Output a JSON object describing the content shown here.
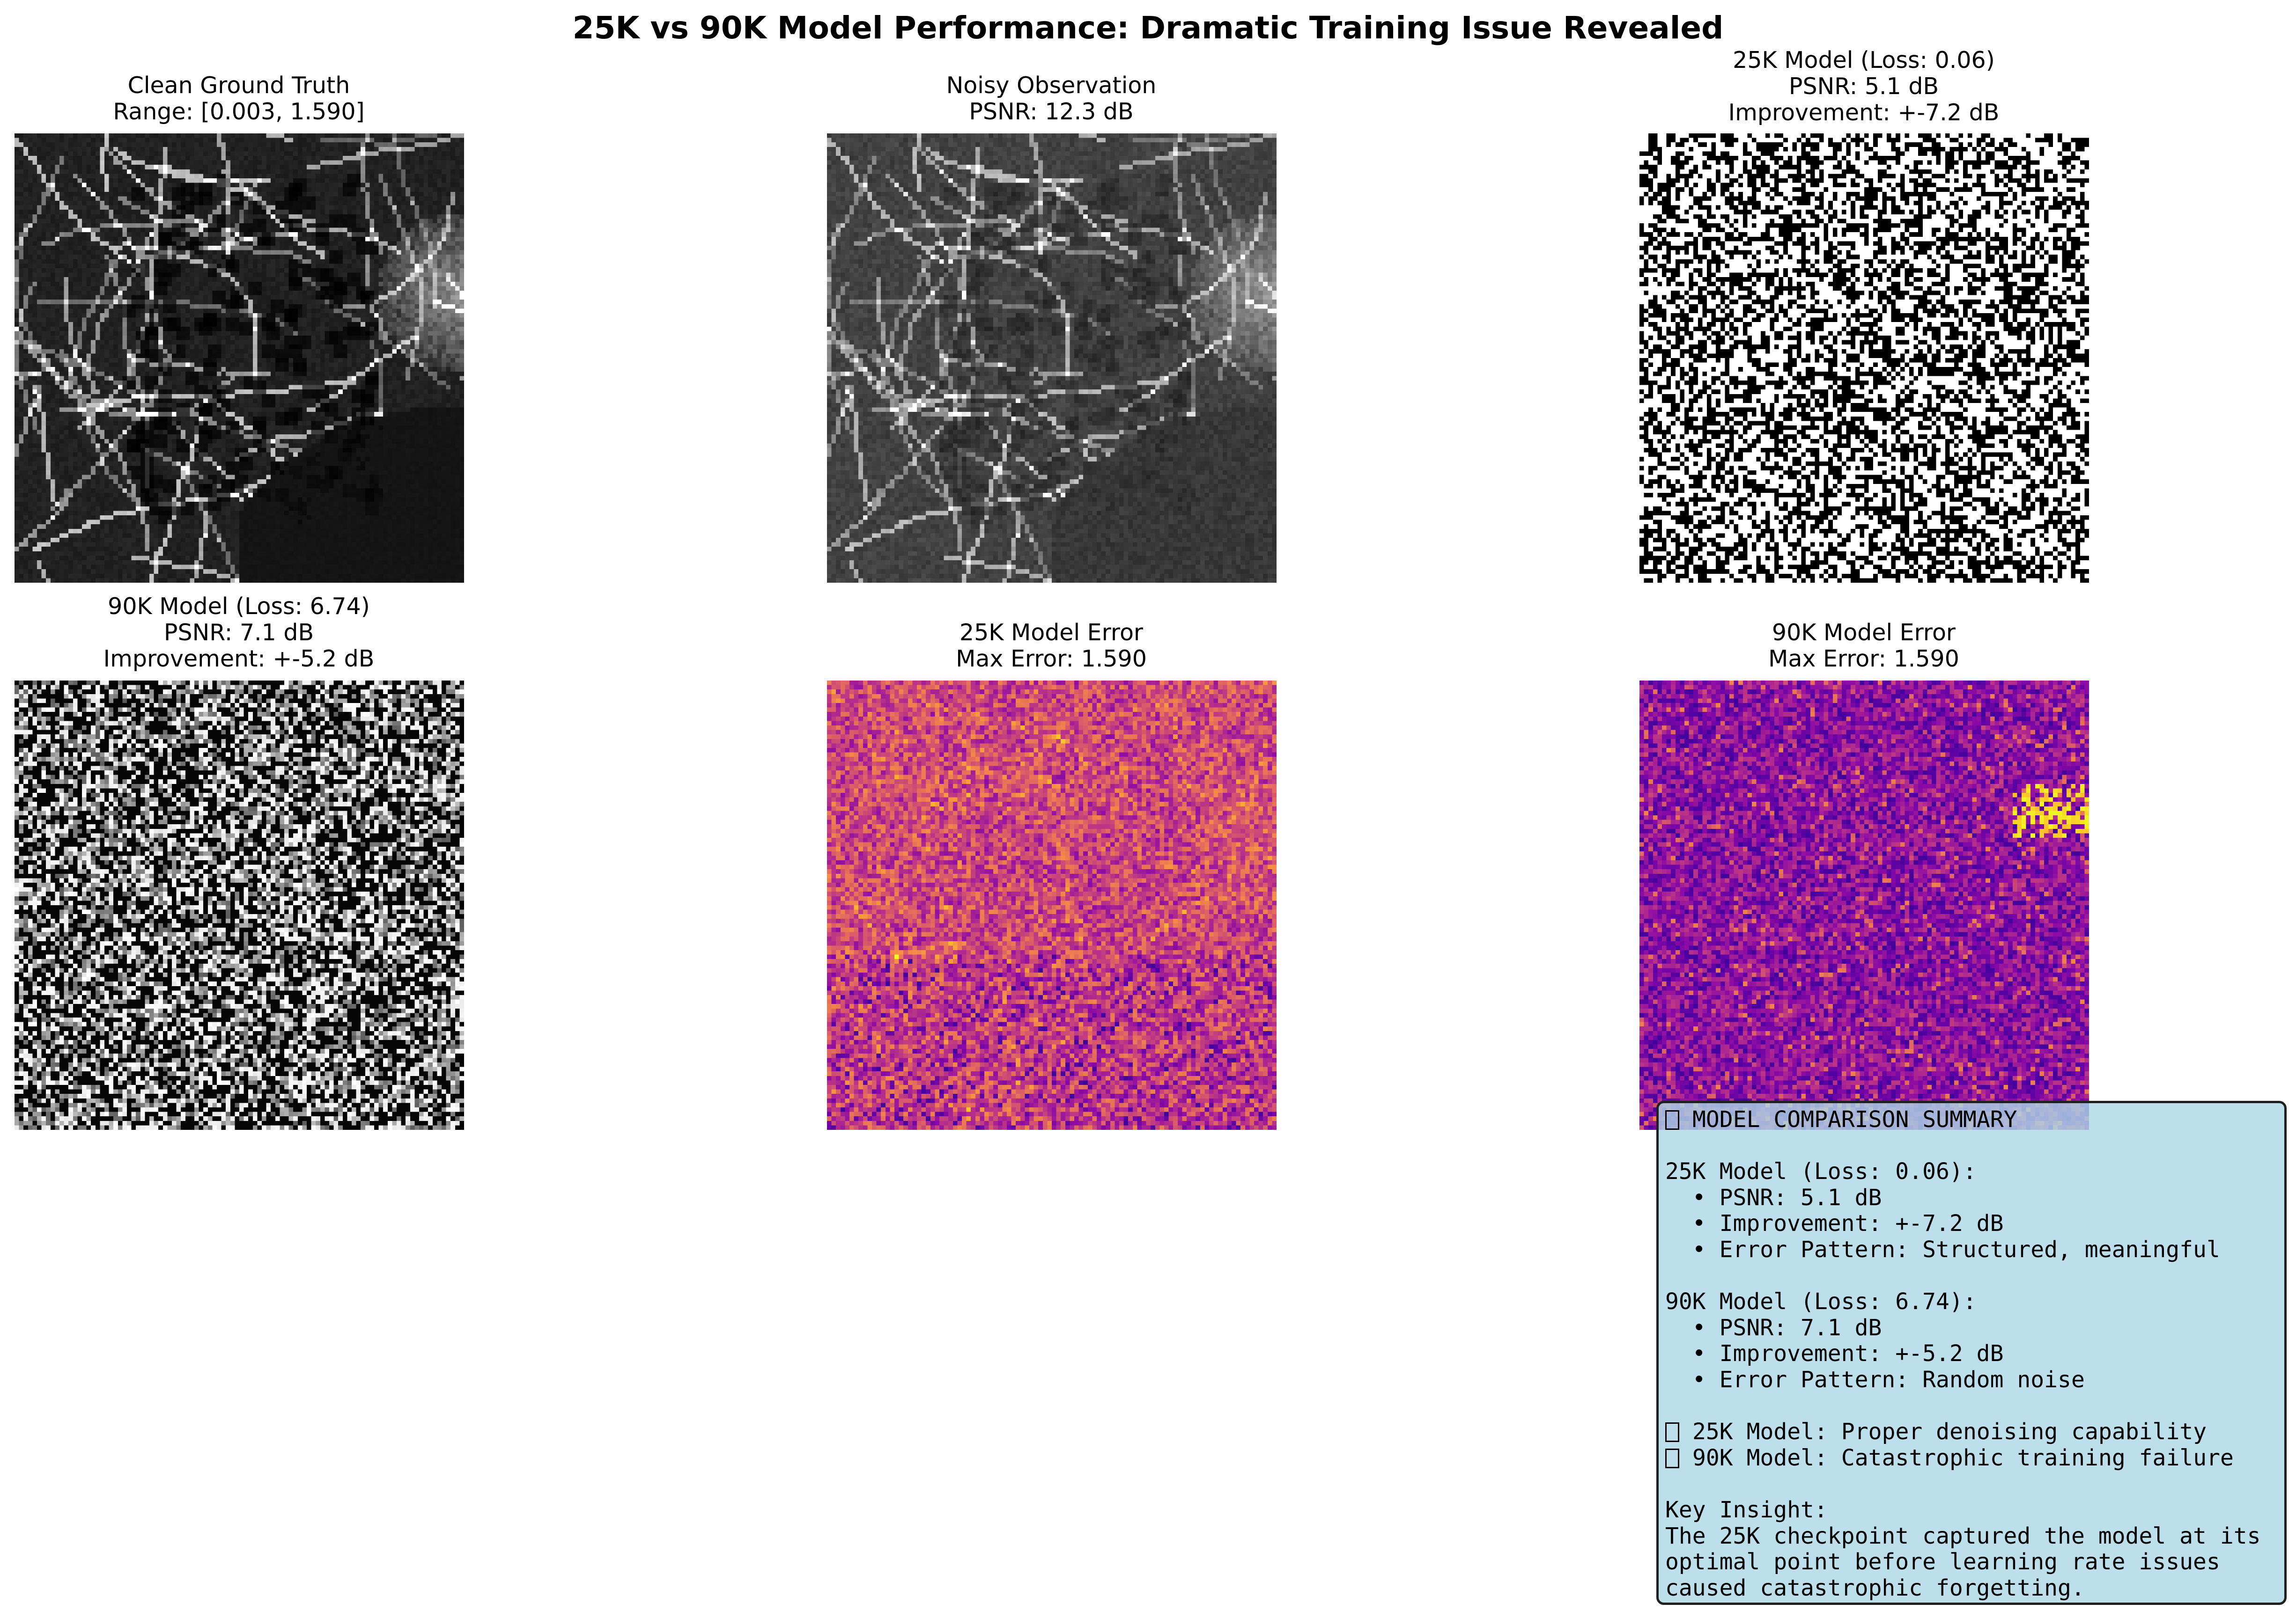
{
  "suptitle": "25K vs 90K Model Performance: Dramatic Training Issue Revealed",
  "panels": [
    {
      "id": "clean",
      "line1": "Clean Ground Truth",
      "line2": "Range: [0.003, 1.590]",
      "line3": "",
      "render": "grayscale-microscopy"
    },
    {
      "id": "noisy",
      "line1": "Noisy Observation",
      "line2": "PSNR: 12.3 dB",
      "line3": "",
      "render": "grayscale-noisy"
    },
    {
      "id": "m25",
      "line1": "25K Model (Loss: 0.06)",
      "line2": "PSNR: 5.1 dB",
      "line3": "Improvement: +-7.2 dB",
      "render": "binary-noise"
    },
    {
      "id": "m90",
      "line1": "90K Model (Loss: 6.74)",
      "line2": "PSNR: 7.1 dB",
      "line3": "Improvement: +-5.2 dB",
      "render": "grayscale-noise"
    },
    {
      "id": "e25",
      "line1": "25K Model Error",
      "line2": "Max Error: 1.590",
      "line3": "",
      "render": "plasma-error"
    },
    {
      "id": "e90",
      "line1": "90K Model Error",
      "line2": "Max Error: 1.590",
      "line3": "",
      "render": "plasma-error"
    }
  ],
  "colormaps": {
    "error": "plasma",
    "images": "gray"
  },
  "summary": {
    "header": "MODEL COMPARISON SUMMARY",
    "m25_title": "25K Model (Loss: 0.06):",
    "m25_psnr": "  • PSNR: 5.1 dB",
    "m25_improvement": "  • Improvement: +-7.2 dB",
    "m25_pattern": "  • Error Pattern: Structured, meaningful",
    "m90_title": "90K Model (Loss: 6.74):",
    "m90_psnr": "  • PSNR: 7.1 dB",
    "m90_improvement": "  • Improvement: +-5.2 dB",
    "m90_pattern": "  • Error Pattern: Random noise",
    "verdict_25": "25K Model: Proper denoising capability",
    "verdict_90": "90K Model: Catastrophic training failure",
    "insight_title": "Key Insight:",
    "insight_1": "The 25K checkpoint captured the model at its",
    "insight_2": "optimal point before learning rate issues",
    "insight_3": "caused catastrophic forgetting.",
    "box_color": "#add8e6"
  }
}
